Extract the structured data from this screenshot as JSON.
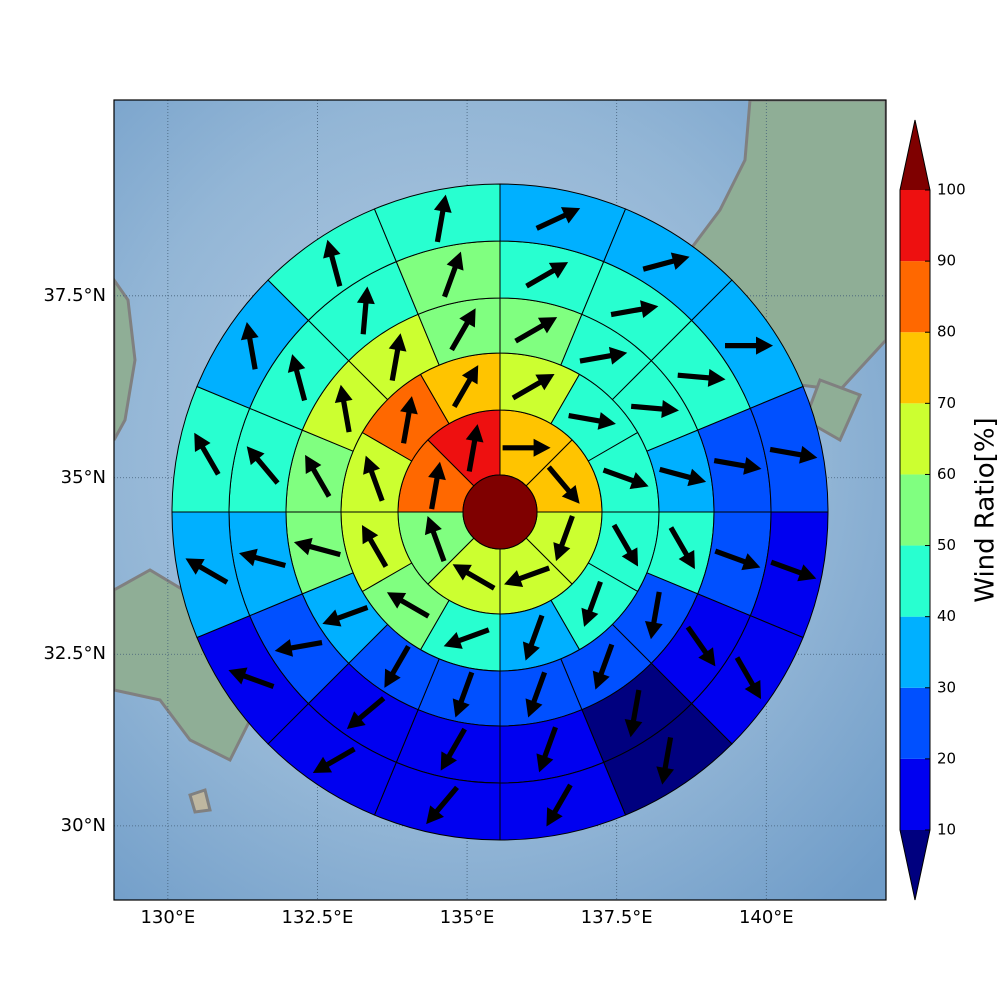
{
  "chart_data": {
    "type": "wind-rose-map",
    "xlim": [
      129.1,
      142.0
    ],
    "ylim": [
      28.9,
      40.1
    ],
    "projection": "mercator",
    "grid": true,
    "xticks": [
      {
        "value": 130,
        "label": "130°E"
      },
      {
        "value": 132.5,
        "label": "132.5°E"
      },
      {
        "value": 135,
        "label": "135°E"
      },
      {
        "value": 137.5,
        "label": "137.5°E"
      },
      {
        "value": 140,
        "label": "140°E"
      }
    ],
    "yticks": [
      {
        "value": 30,
        "label": "30°N"
      },
      {
        "value": 32.5,
        "label": "32.5°N"
      },
      {
        "value": 35,
        "label": "35°N"
      },
      {
        "value": 37.5,
        "label": "37.5°N"
      }
    ],
    "center_value": 105,
    "rings": [
      {
        "values": [
          75,
          75,
          65,
          65,
          65,
          55,
          85,
          95
        ],
        "directions": [
          90,
          140,
          200,
          250,
          300,
          340,
          10,
          10
        ]
      },
      {
        "values": [
          65,
          45,
          45,
          45,
          45,
          35,
          45,
          55,
          65,
          65,
          85,
          75
        ],
        "directions": [
          60,
          100,
          110,
          150,
          200,
          200,
          250,
          300,
          330,
          340,
          10,
          30
        ]
      },
      {
        "values": [
          55,
          45,
          45,
          35,
          45,
          25,
          25,
          25,
          25,
          25,
          35,
          55,
          55,
          65,
          65,
          55
        ],
        "directions": [
          60,
          80,
          95,
          105,
          150,
          190,
          200,
          200,
          200,
          210,
          250,
          285,
          330,
          350,
          10,
          30
        ]
      },
      {
        "values": [
          45,
          45,
          45,
          25,
          25,
          15,
          5,
          15,
          15,
          15,
          25,
          35,
          45,
          45,
          45,
          55
        ],
        "directions": [
          60,
          80,
          95,
          100,
          110,
          145,
          190,
          200,
          210,
          230,
          260,
          285,
          320,
          345,
          5,
          20
        ]
      },
      {
        "values": [
          35,
          35,
          35,
          25,
          15,
          15,
          5,
          15,
          15,
          15,
          15,
          35,
          45,
          35,
          45,
          45
        ],
        "directions": [
          65,
          75,
          90,
          100,
          110,
          150,
          190,
          210,
          220,
          240,
          290,
          300,
          330,
          350,
          345,
          10
        ]
      }
    ],
    "colorbar": {
      "label": "Wind Ratio[%]",
      "ticks": [
        10,
        20,
        30,
        40,
        50,
        60,
        70,
        80,
        90,
        100
      ],
      "colors": [
        "#0000f0",
        "#0050ff",
        "#00b0ff",
        "#28ffd0",
        "#80ff80",
        "#ccff30",
        "#ffc400",
        "#ff6800",
        "#ee1010"
      ],
      "under_color": "#00007f",
      "over_color": "#7f0000"
    }
  }
}
